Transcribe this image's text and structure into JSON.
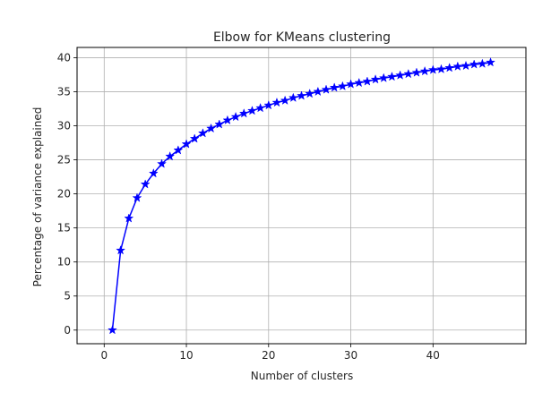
{
  "chart_data": {
    "type": "line",
    "title": "Elbow for KMeans clustering",
    "xlabel": "Number of clusters",
    "ylabel": "Percentage of variance explained",
    "xlim": [
      -3.3,
      51.3
    ],
    "ylim": [
      -2.0,
      41.5
    ],
    "xticks": [
      0,
      10,
      20,
      30,
      40
    ],
    "yticks": [
      0,
      5,
      10,
      15,
      20,
      25,
      30,
      35,
      40
    ],
    "grid": true,
    "line_color": "#0000ff",
    "marker": "star",
    "series": [
      {
        "x": [
          1,
          2,
          3,
          4,
          5,
          6,
          7,
          8,
          9,
          10,
          11,
          12,
          13,
          14,
          15,
          16,
          17,
          18,
          19,
          20,
          21,
          22,
          23,
          24,
          25,
          26,
          27,
          28,
          29,
          30,
          31,
          32,
          33,
          34,
          35,
          36,
          37,
          38,
          39,
          40,
          41,
          42,
          43,
          44,
          45,
          46,
          47
        ],
        "values": [
          0.0,
          11.7,
          16.4,
          19.4,
          21.4,
          23.0,
          24.4,
          25.5,
          26.4,
          27.3,
          28.1,
          28.9,
          29.6,
          30.2,
          30.8,
          31.3,
          31.8,
          32.2,
          32.6,
          33.0,
          33.4,
          33.7,
          34.1,
          34.4,
          34.7,
          35.0,
          35.3,
          35.6,
          35.8,
          36.1,
          36.3,
          36.5,
          36.8,
          37.0,
          37.2,
          37.4,
          37.6,
          37.8,
          38.0,
          38.2,
          38.3,
          38.5,
          38.7,
          38.8,
          39.0,
          39.1,
          39.3
        ]
      }
    ]
  }
}
